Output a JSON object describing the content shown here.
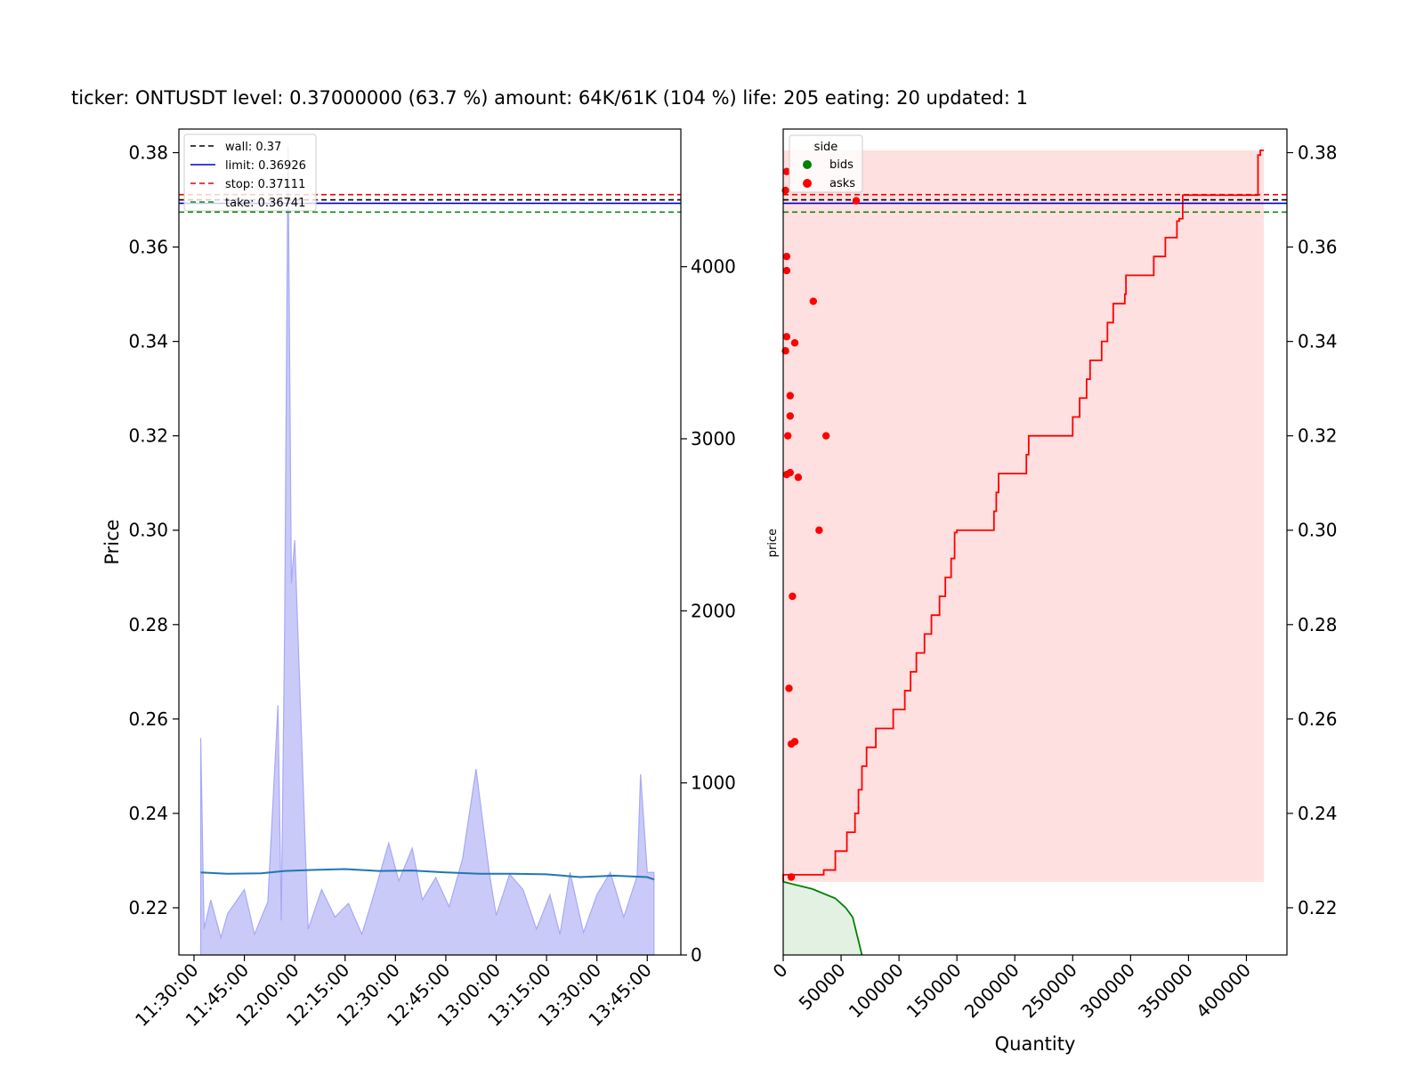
{
  "title": "ticker: ONTUSDT level: 0.37000000 (63.7 %) amount: 64K/61K (104 %)  life: 205 eating: 20 updated: 1",
  "colors": {
    "wall": "#000000",
    "limit": "#0000cc",
    "stop": "#ee0000",
    "take": "#118811",
    "volume_fill": "#b8b8f5",
    "volume_line": "#a8a8f8",
    "price_line": "#1f77b4",
    "asks": "#ff0000",
    "asks_fill": "#ffe0e0",
    "bids": "#008000",
    "bids_fill": "#e3f1e3"
  },
  "chart_data": [
    {
      "type": "line",
      "ylabel": "Price",
      "ylim": [
        0.21,
        0.385
      ],
      "y2lim": [
        0,
        4800
      ],
      "yticks": [
        "0.22",
        "0.24",
        "0.26",
        "0.28",
        "0.30",
        "0.32",
        "0.34",
        "0.36",
        "0.38"
      ],
      "y2ticks": [
        "0",
        "1000",
        "2000",
        "3000",
        "4000"
      ],
      "xticks": [
        "11:30:00",
        "11:45:00",
        "12:00:00",
        "12:15:00",
        "12:30:00",
        "12:45:00",
        "13:00:00",
        "13:15:00",
        "13:30:00",
        "13:45:00"
      ],
      "xrange_min": [
        -4.5,
        145
      ],
      "levels": [
        {
          "name": "wall",
          "label": "wall: 0.37",
          "value": 0.37,
          "style": "dashed"
        },
        {
          "name": "limit",
          "label": "limit: 0.36926",
          "value": 0.36926,
          "style": "solid"
        },
        {
          "name": "stop",
          "label": "stop: 0.37111",
          "value": 0.37111,
          "style": "dashed"
        },
        {
          "name": "take",
          "label": "take: 0.36741",
          "value": 0.36741,
          "style": "dashed"
        }
      ],
      "legend_position": "upper-left",
      "price_series": {
        "x": [
          "11:32",
          "11:40",
          "11:50",
          "11:57",
          "12:05",
          "12:15",
          "12:25",
          "12:35",
          "12:45",
          "12:55",
          "13:05",
          "13:15",
          "13:25",
          "13:35",
          "13:45",
          "13:47"
        ],
        "y": [
          0.2275,
          0.2272,
          0.2273,
          0.2278,
          0.228,
          0.2282,
          0.2278,
          0.2279,
          0.2275,
          0.2272,
          0.2272,
          0.2271,
          0.2265,
          0.2268,
          0.2265,
          0.226
        ]
      },
      "volume_series": {
        "x": [
          "11:32",
          "11:33",
          "11:35",
          "11:38",
          "11:40",
          "11:45",
          "11:48",
          "11:52",
          "11:55",
          "11:56",
          "11:57",
          "11:58",
          "11:59",
          "12:00",
          "12:04",
          "12:08",
          "12:12",
          "12:16",
          "12:20",
          "12:24",
          "12:28",
          "12:31",
          "12:35",
          "12:38",
          "12:42",
          "12:46",
          "12:50",
          "12:54",
          "12:58",
          "13:00",
          "13:04",
          "13:08",
          "13:12",
          "13:16",
          "13:19",
          "13:22",
          "13:26",
          "13:30",
          "13:34",
          "13:38",
          "13:42",
          "13:43",
          "13:45",
          "13:47"
        ],
        "y": [
          1260,
          150,
          320,
          100,
          240,
          380,
          120,
          310,
          1450,
          200,
          1900,
          4700,
          2160,
          2410,
          150,
          380,
          220,
          300,
          120,
          380,
          650,
          430,
          620,
          320,
          450,
          280,
          560,
          1080,
          470,
          230,
          470,
          380,
          150,
          350,
          120,
          480,
          130,
          350,
          480,
          220,
          460,
          1050,
          480,
          480
        ]
      }
    },
    {
      "type": "area",
      "xlabel": "Quantity",
      "ylabel": "price",
      "xlim": [
        0,
        435000
      ],
      "ylim": [
        0.21,
        0.385
      ],
      "xticks": [
        "0",
        "50000",
        "100000",
        "150000",
        "200000",
        "250000",
        "300000",
        "350000",
        "400000"
      ],
      "yticks": [
        "0.22",
        "0.24",
        "0.26",
        "0.28",
        "0.30",
        "0.32",
        "0.34",
        "0.36",
        "0.38"
      ],
      "legend_title": "side",
      "legend_entries": [
        "bids",
        "asks"
      ],
      "legend_position": "upper-left",
      "asks_cumulative": {
        "y": [
          0.2255,
          0.227,
          0.228,
          0.232,
          0.236,
          0.24,
          0.245,
          0.25,
          0.254,
          0.258,
          0.262,
          0.266,
          0.27,
          0.274,
          0.278,
          0.282,
          0.286,
          0.29,
          0.294,
          0.2995,
          0.3,
          0.304,
          0.308,
          0.312,
          0.312,
          0.316,
          0.32,
          0.32,
          0.324,
          0.328,
          0.332,
          0.336,
          0.34,
          0.344,
          0.348,
          0.35,
          0.354,
          0.358,
          0.362,
          0.3655,
          0.366,
          0.3695,
          0.371,
          0.3795,
          0.3805
        ],
        "x": [
          0,
          35000,
          45000,
          55000,
          62000,
          65000,
          68000,
          72000,
          80000,
          95000,
          105000,
          110000,
          115000,
          122000,
          128000,
          135000,
          140000,
          145000,
          148000,
          150000,
          182000,
          184000,
          186000,
          188000,
          210000,
          212000,
          225000,
          250000,
          256000,
          262000,
          265000,
          275000,
          280000,
          285000,
          295000,
          296000,
          320000,
          330000,
          340000,
          342000,
          345000,
          345000,
          410000,
          412000,
          415000
        ]
      },
      "bids_cumulative": {
        "y": [
          0.21,
          0.212,
          0.214,
          0.216,
          0.218,
          0.22,
          0.222,
          0.224,
          0.2255
        ],
        "x": [
          68000,
          66000,
          64000,
          62000,
          60000,
          54000,
          45000,
          25000,
          0
        ]
      },
      "ask_points": [
        {
          "q": 63000,
          "p": 0.3698
        },
        {
          "q": 26000,
          "p": 0.3485
        },
        {
          "q": 10000,
          "p": 0.3397
        },
        {
          "q": 6000,
          "p": 0.3285
        },
        {
          "q": 6000,
          "p": 0.3242
        },
        {
          "q": 37000,
          "p": 0.32
        },
        {
          "q": 4000,
          "p": 0.32
        },
        {
          "q": 13000,
          "p": 0.3112
        },
        {
          "q": 6000,
          "p": 0.3122
        },
        {
          "q": 3000,
          "p": 0.3118
        },
        {
          "q": 31000,
          "p": 0.3
        },
        {
          "q": 8000,
          "p": 0.286
        },
        {
          "q": 5000,
          "p": 0.2665
        },
        {
          "q": 10000,
          "p": 0.2552
        },
        {
          "q": 7000,
          "p": 0.2547
        },
        {
          "q": 7000,
          "p": 0.2265
        },
        {
          "q": 3000,
          "p": 0.376
        },
        {
          "q": 2000,
          "p": 0.372
        },
        {
          "q": 3000,
          "p": 0.358
        },
        {
          "q": 3000,
          "p": 0.355
        },
        {
          "q": 3000,
          "p": 0.341
        },
        {
          "q": 2000,
          "p": 0.338
        }
      ]
    }
  ]
}
